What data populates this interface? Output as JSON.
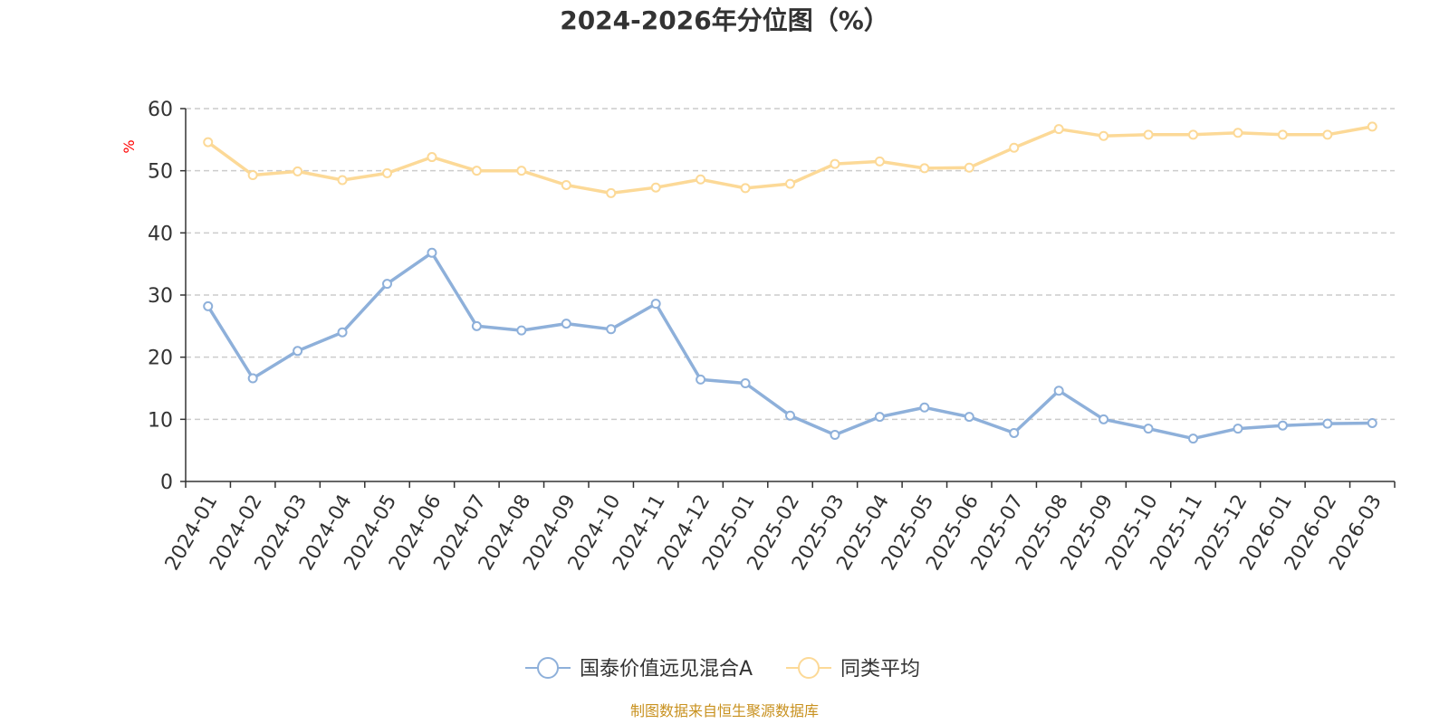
{
  "chart_data": {
    "type": "line",
    "title": "2024-2026年分位图（%）",
    "ylabel": "%",
    "ylim": [
      0,
      60
    ],
    "yticks": [
      "0",
      "10",
      "20",
      "30",
      "40",
      "50",
      "60"
    ],
    "grid": true,
    "legend_position": "bottom-center",
    "categories": [
      "2024-01",
      "2024-02",
      "2024-03",
      "2024-04",
      "2024-05",
      "2024-06",
      "2024-07",
      "2024-08",
      "2024-09",
      "2024-10",
      "2024-11",
      "2024-12",
      "2025-01",
      "2025-02",
      "2025-03",
      "2025-04",
      "2025-05",
      "2025-06",
      "2025-07",
      "2025-08",
      "2025-09",
      "2025-10",
      "2025-11",
      "2025-12",
      "2026-01",
      "2026-02",
      "2026-03"
    ],
    "series": [
      {
        "name": "国泰价值远见混合A",
        "color": "#8eb0da",
        "values": [
          28.2,
          16.6,
          21.0,
          24.0,
          31.8,
          36.8,
          25.0,
          24.3,
          25.4,
          24.5,
          28.6,
          16.4,
          15.8,
          10.6,
          7.5,
          10.4,
          11.9,
          10.4,
          7.8,
          14.6,
          10.0,
          8.5,
          6.9,
          8.5,
          9.0,
          9.3,
          9.4
        ]
      },
      {
        "name": "同类平均",
        "color": "#fcd997",
        "values": [
          54.6,
          49.3,
          49.9,
          48.5,
          49.6,
          52.2,
          50.0,
          50.0,
          47.7,
          46.4,
          47.3,
          48.6,
          47.2,
          47.9,
          51.1,
          51.5,
          50.4,
          50.5,
          53.7,
          56.7,
          55.6,
          55.8,
          55.8,
          56.1,
          55.8,
          55.8,
          57.1
        ]
      }
    ]
  },
  "footer": {
    "source": "制图数据来自恒生聚源数据库",
    "source_color": "#c8911f"
  }
}
